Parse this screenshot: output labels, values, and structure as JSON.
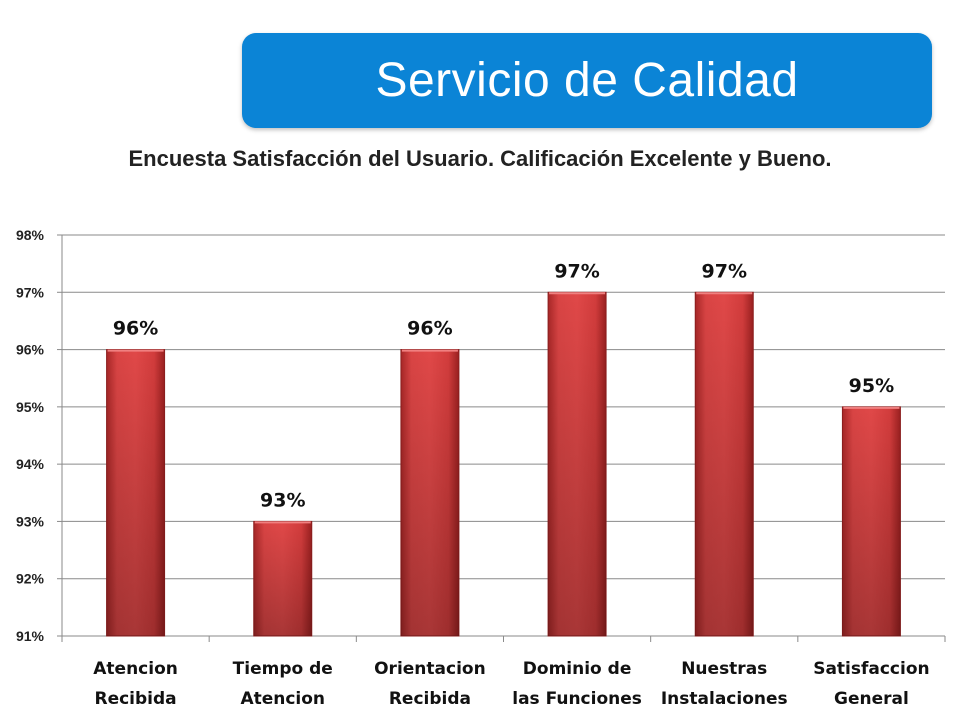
{
  "header": {
    "title": "Servicio de Calidad"
  },
  "chart_data": {
    "type": "bar",
    "title": "Encuesta Satisfacción del Usuario. Calificación Excelente y Bueno.",
    "categories": [
      [
        "Atencion",
        "Recibida"
      ],
      [
        "Tiempo de",
        "Atencion"
      ],
      [
        "Orientacion",
        "Recibida"
      ],
      [
        "Dominio de",
        "las Funciones"
      ],
      [
        "Nuestras",
        "Instalaciones"
      ],
      [
        "Satisfaccion",
        "General"
      ]
    ],
    "values": [
      0.96,
      0.93,
      0.96,
      0.97,
      0.97,
      0.95
    ],
    "data_labels": [
      "96%",
      "93%",
      "96%",
      "97%",
      "97%",
      "95%"
    ],
    "ylim": [
      0.91,
      0.98
    ],
    "yticks": [
      0.91,
      0.92,
      0.93,
      0.94,
      0.95,
      0.96,
      0.97,
      0.98
    ],
    "ytick_labels": [
      "91%",
      "92%",
      "93%",
      "94%",
      "95%",
      "96%",
      "97%",
      "98%"
    ],
    "xlabel": "",
    "ylabel": "",
    "grid": true,
    "legend": "none",
    "colors": {
      "bar": "#d63a3a",
      "bar_dark": "#9e2323",
      "grid": "#8a8a8a",
      "banner": "#0b84d6"
    }
  }
}
